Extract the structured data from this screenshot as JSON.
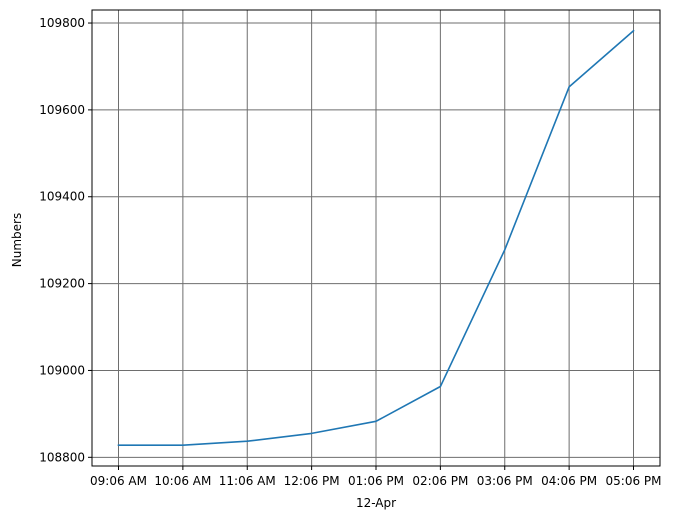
{
  "chart_data": {
    "type": "line",
    "title": "",
    "xlabel": "12-Apr",
    "ylabel": "Numbers",
    "x": [
      "09:06 AM",
      "10:06 AM",
      "11:06 AM",
      "12:06 PM",
      "01:06 PM",
      "02:06 PM",
      "03:06 PM",
      "04:06 PM",
      "05:06 PM"
    ],
    "series": [
      {
        "values": [
          108828,
          108828,
          108837,
          108855,
          108883,
          108963,
          109278,
          109653,
          109782
        ]
      }
    ],
    "ylim": [
      108780,
      109830
    ],
    "yticks": [
      108800,
      109000,
      109200,
      109400,
      109600,
      109800
    ],
    "grid": true,
    "colors": {
      "line": "#1f77b4",
      "grid": "#6e6e6e",
      "axis": "#000000"
    }
  }
}
